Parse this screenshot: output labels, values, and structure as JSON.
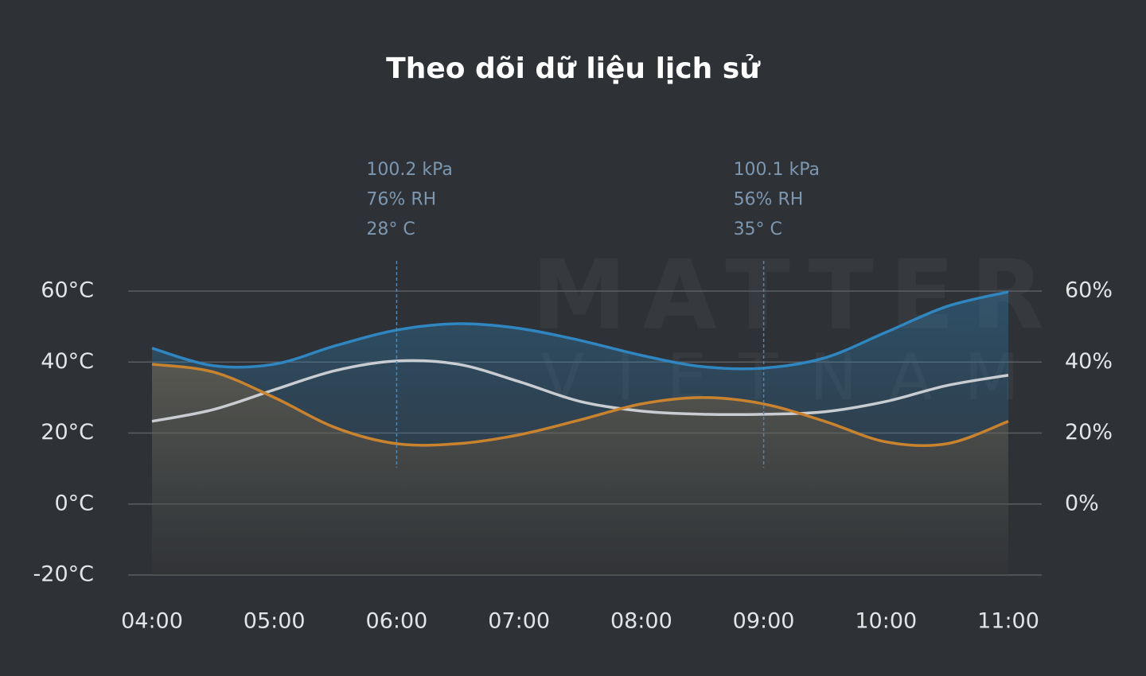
{
  "chart_data": {
    "type": "line",
    "title": "Theo dõi dữ liệu lịch sử",
    "watermark": [
      "MATTER",
      "VIETNAM"
    ],
    "categories": [
      "04:00",
      null,
      "05:00",
      null,
      "06:00",
      null,
      "07:00",
      null,
      "08:00",
      null,
      "09:00",
      null,
      "10:00",
      null,
      "11:00"
    ],
    "series": [
      {
        "color": "#2f86c0",
        "axis": "y2",
        "values": [
          43.9,
          39,
          39.4,
          44.6,
          49,
          50.8,
          49.5,
          46.1,
          41.9,
          38.7,
          38.3,
          41.2,
          48.4,
          55.7,
          59.8
        ]
      },
      {
        "color": "#c9ccd0",
        "values": [
          23.3,
          26.6,
          32.2,
          37.6,
          40.3,
          39.4,
          34.5,
          28.9,
          26.2,
          25.3,
          25.3,
          26,
          28.9,
          33.4,
          36.3
        ]
      },
      {
        "color": "#c9832f",
        "values": [
          39.4,
          37.2,
          30,
          21.5,
          17,
          17,
          19.5,
          23.7,
          28.2,
          30,
          28.2,
          23.3,
          17.5,
          17,
          23.3
        ]
      }
    ],
    "ylim": [
      -20,
      60
    ],
    "yticks": [
      {
        "value": -20,
        "label": "-20°C"
      },
      {
        "value": 0,
        "label": "0°C"
      },
      {
        "value": 20,
        "label": "20°C"
      },
      {
        "value": 40,
        "label": "40°C"
      },
      {
        "value": 60,
        "label": "60°C"
      }
    ],
    "y2lim": [
      -20,
      60
    ],
    "y2ticks": [
      {
        "value": 0,
        "label": "0%"
      },
      {
        "value": 20,
        "label": "20%"
      },
      {
        "value": 40,
        "label": "40%"
      },
      {
        "value": 60,
        "label": "60%"
      }
    ],
    "grid": true,
    "annotations": [
      {
        "x": "06:00",
        "lines": [
          "100.2 kPa",
          "76% RH",
          "28° C"
        ]
      },
      {
        "x": "09:00",
        "lines": [
          "100.1 kPa",
          "56% RH",
          "35° C"
        ]
      }
    ]
  }
}
